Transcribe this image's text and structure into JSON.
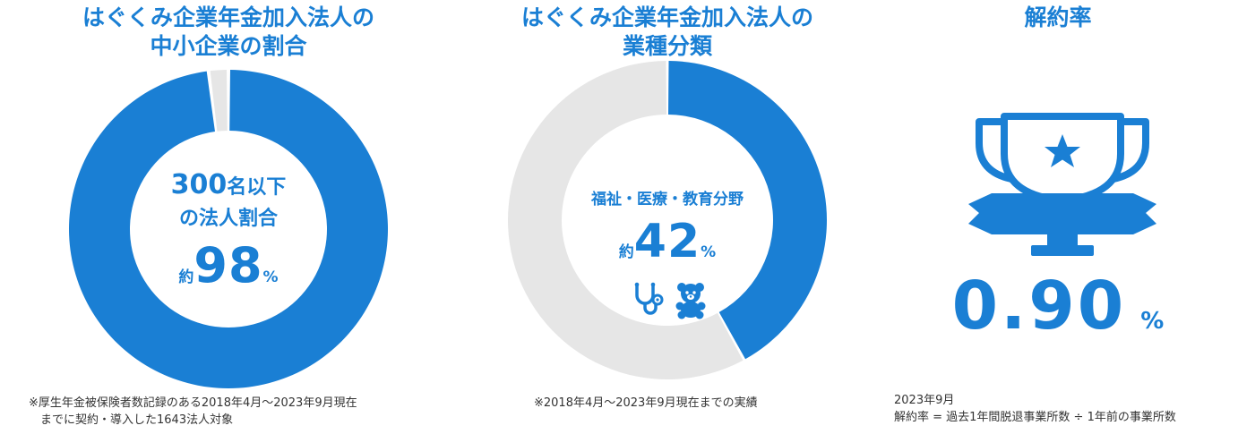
{
  "panel1": {
    "title_line1": "はぐくみ企業年金加入法人の",
    "title_line2": "中小企業の割合",
    "center_line1_num": "300",
    "center_line1_text": "名以下",
    "center_line2": "の法人割合",
    "prefix": "約",
    "value": "98",
    "unit": "%",
    "note_line1": "※厚生年金被保険者数記録のある2018年4月～2023年9月現在",
    "note_line2": "までに契約・導入した1643法人対象"
  },
  "panel2": {
    "title_line1": "はぐくみ企業年金加入法人の",
    "title_line2": "業種分類",
    "center_label": "福祉・医療・教育分野",
    "prefix": "約",
    "value": "42",
    "unit": "%",
    "icon1": "stethoscope-icon",
    "icon2": "teddy-bear-icon",
    "note_line1": "※2018年4月～2023年9月現在までの実績"
  },
  "panel3": {
    "title": "解約率",
    "icon": "trophy-icon",
    "value": "0.90",
    "unit": "%",
    "note_line1": "2023年9月",
    "note_line2": "解約率 = 過去1年間脱退事業所数 ÷ 1年前の事業所数"
  },
  "colors": {
    "primary": "#1a7fd4",
    "track": "#e6e6e6",
    "text": "#333333"
  },
  "chart_data": [
    {
      "type": "pie",
      "title": "はぐくみ企業年金加入法人の中小企業の割合",
      "slices": [
        {
          "label": "300名以下の法人",
          "value": 98
        },
        {
          "label": "",
          "value": 2
        }
      ]
    },
    {
      "type": "pie",
      "title": "はぐくみ企業年金加入法人の業種分類",
      "slices": [
        {
          "label": "福祉・医療・教育分野",
          "value": 42
        },
        {
          "label": "",
          "value": 58
        }
      ]
    }
  ]
}
